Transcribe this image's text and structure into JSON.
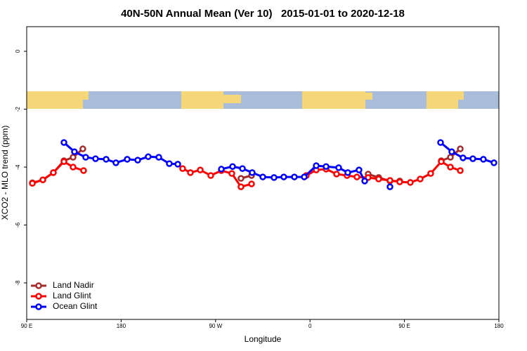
{
  "chart_data": {
    "type": "line",
    "title": "40N-50N Annual Mean (Ver 10)   2015-01-01 to 2020-12-18",
    "x_label": "Longitude",
    "y_label": "XCO2 - MLO trend (ppm)",
    "xlim": [
      90,
      540
    ],
    "ylim": [
      -9.26,
      0.85
    ],
    "xticks": [
      {
        "value": 90,
        "label": "90 E"
      },
      180,
      {
        "value": 270,
        "label": "90 W"
      },
      {
        "value": 360,
        "label": "0"
      },
      {
        "value": 450,
        "label": "90 E"
      },
      {
        "value": 540,
        "label": "180"
      }
    ],
    "yticks": [
      0,
      -2,
      -4,
      -6,
      -8
    ],
    "legend": "bottom-left",
    "series": [
      {
        "name": "Land Nadir",
        "color": "#a52a2a",
        "x": [
          95.4,
          105.4,
          115.4,
          125.5,
          134.2,
          143.5,
          null,
          294.2,
          304.3,
          null,
          415.4,
          425.4,
          436.2,
          445.5,
          null,
          485.1,
          493.8,
          503.2
        ],
        "values": [
          -4.54,
          -4.44,
          -4.19,
          -3.78,
          -3.66,
          -3.37,
          null,
          -4.39,
          -4.29,
          null,
          -4.24,
          -4.36,
          -4.48,
          -4.48,
          null,
          -3.78,
          -3.66,
          -3.37
        ]
      },
      {
        "name": "Land Glint",
        "color": "#ff0000",
        "x": [
          95.4,
          105.4,
          115.4,
          125.5,
          134.2,
          144.2,
          null,
          238.6,
          246,
          255.4,
          265.4,
          275.5,
          285.5,
          294.2,
          304.3,
          null,
          356.5,
          365.9,
          375.3,
          385.3,
          395.3,
          404.7,
          415.4,
          425.4,
          436.2,
          445.5,
          455.6,
          465,
          475,
          485.1,
          493.8,
          503.2
        ],
        "values": [
          -4.56,
          -4.44,
          -4.19,
          -3.81,
          -4.0,
          -4.12,
          null,
          -4.05,
          -4.19,
          -4.1,
          -4.29,
          -4.12,
          -4.22,
          -4.68,
          -4.58,
          null,
          -4.29,
          -4.1,
          -4.07,
          -4.24,
          -4.29,
          -4.34,
          -4.36,
          -4.41,
          -4.46,
          -4.51,
          -4.53,
          -4.41,
          -4.22,
          -3.81,
          -4.0,
          -4.12
        ]
      },
      {
        "name": "Ocean Glint",
        "color": "#0000ff",
        "x": [
          125.5,
          135.5,
          146.2,
          155.6,
          165.7,
          175,
          185.8,
          195.8,
          205.8,
          215.9,
          225.9,
          234,
          null,
          275.5,
          286.2,
          295.6,
          304.9,
          315,
          325.7,
          335,
          345.1,
          354.5,
          365.9,
          375.3,
          387.3,
          396,
          406.7,
          412.1,
          null,
          436.2,
          null,
          484.4,
          495.1,
          505.8,
          515.2,
          525.2,
          535.3
        ],
        "values": [
          -3.15,
          -3.47,
          -3.66,
          -3.71,
          -3.73,
          -3.85,
          -3.73,
          -3.76,
          -3.64,
          -3.66,
          -3.88,
          -3.9,
          null,
          -4.07,
          -3.98,
          -4.05,
          -4.19,
          -4.34,
          -4.36,
          -4.34,
          -4.34,
          -4.34,
          -3.95,
          -3.98,
          -4.02,
          -4.19,
          -4.1,
          -4.48,
          null,
          -4.68,
          null,
          -3.15,
          -3.47,
          -3.68,
          -3.71,
          -3.73,
          -3.85
        ]
      }
    ]
  }
}
